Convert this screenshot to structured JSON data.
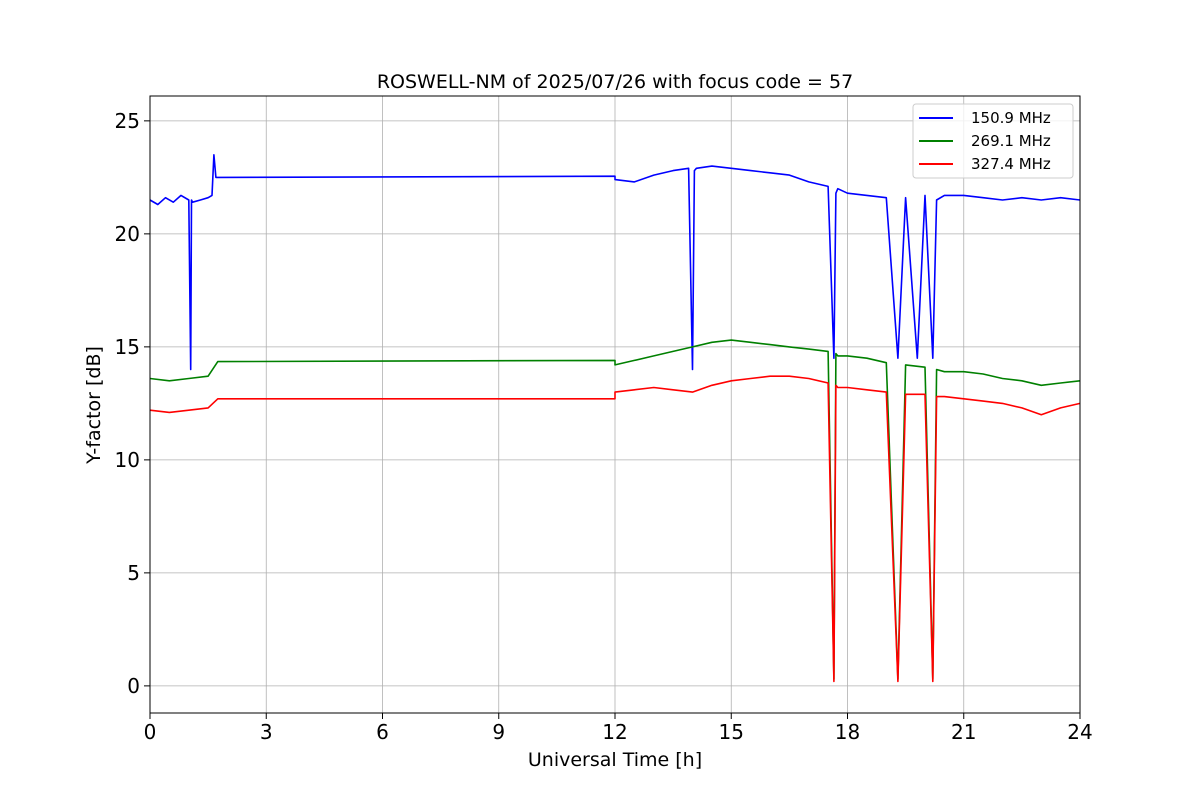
{
  "chart_data": {
    "type": "line",
    "title": "ROSWELL-NM of 2025/07/26 with focus code = 57",
    "xlabel": "Universal Time [h]",
    "ylabel": "Y-factor [dB]",
    "xlim": [
      0,
      24
    ],
    "ylim": [
      -1.2,
      26.1
    ],
    "xticks": [
      0,
      3,
      6,
      9,
      12,
      15,
      18,
      21,
      24
    ],
    "yticks": [
      0,
      5,
      10,
      15,
      20,
      25
    ],
    "grid": true,
    "legend_position": "top-right",
    "series": [
      {
        "name": "150.9 MHz",
        "color": "#0000ff",
        "x": [
          0.0,
          0.2,
          0.4,
          0.6,
          0.8,
          1.0,
          1.05,
          1.07,
          1.1,
          1.3,
          1.5,
          1.6,
          1.65,
          1.7,
          1.75,
          12.0,
          12.0,
          12.5,
          13.0,
          13.5,
          13.9,
          14.0,
          14.05,
          14.1,
          14.5,
          15.0,
          15.5,
          16.0,
          16.5,
          17.0,
          17.5,
          17.65,
          17.7,
          17.75,
          18.0,
          18.5,
          19.0,
          19.3,
          19.5,
          19.8,
          20.0,
          20.2,
          20.3,
          20.5,
          21.0,
          21.5,
          22.0,
          22.5,
          23.0,
          23.5,
          24.0
        ],
        "y": [
          21.5,
          21.3,
          21.6,
          21.4,
          21.7,
          21.5,
          14.0,
          21.5,
          21.4,
          21.5,
          21.6,
          21.7,
          23.5,
          22.5,
          22.5,
          22.55,
          22.4,
          22.3,
          22.6,
          22.8,
          22.9,
          14.0,
          22.8,
          22.9,
          23.0,
          22.9,
          22.8,
          22.7,
          22.6,
          22.3,
          22.1,
          14.5,
          21.8,
          22.0,
          21.8,
          21.7,
          21.6,
          14.5,
          21.6,
          14.5,
          21.7,
          14.5,
          21.5,
          21.7,
          21.7,
          21.6,
          21.5,
          21.6,
          21.5,
          21.6,
          21.5
        ]
      },
      {
        "name": "269.1 MHz",
        "color": "#008000",
        "x": [
          0.0,
          0.5,
          1.0,
          1.5,
          1.75,
          12.0,
          12.0,
          12.5,
          13.0,
          13.5,
          14.0,
          14.5,
          15.0,
          15.5,
          16.0,
          16.5,
          17.0,
          17.5,
          17.65,
          17.7,
          17.75,
          18.0,
          18.5,
          19.0,
          19.3,
          19.5,
          20.0,
          20.2,
          20.3,
          20.5,
          21.0,
          21.5,
          22.0,
          22.5,
          23.0,
          23.5,
          24.0
        ],
        "y": [
          13.6,
          13.5,
          13.6,
          13.7,
          14.35,
          14.4,
          14.2,
          14.4,
          14.6,
          14.8,
          15.0,
          15.2,
          15.3,
          15.2,
          15.1,
          15.0,
          14.9,
          14.8,
          0.3,
          14.7,
          14.6,
          14.6,
          14.5,
          14.3,
          0.3,
          14.2,
          14.1,
          0.3,
          14.0,
          13.9,
          13.9,
          13.8,
          13.6,
          13.5,
          13.3,
          13.4,
          13.5
        ]
      },
      {
        "name": "327.4 MHz",
        "color": "#ff0000",
        "x": [
          0.0,
          0.5,
          1.0,
          1.5,
          1.75,
          12.0,
          12.0,
          12.5,
          13.0,
          13.5,
          14.0,
          14.5,
          15.0,
          15.5,
          16.0,
          16.5,
          17.0,
          17.5,
          17.65,
          17.7,
          17.75,
          18.0,
          18.5,
          19.0,
          19.3,
          19.5,
          20.0,
          20.2,
          20.3,
          20.5,
          21.0,
          21.5,
          22.0,
          22.5,
          23.0,
          23.5,
          24.0
        ],
        "y": [
          12.2,
          12.1,
          12.2,
          12.3,
          12.7,
          12.7,
          13.0,
          13.1,
          13.2,
          13.1,
          13.0,
          13.3,
          13.5,
          13.6,
          13.7,
          13.7,
          13.6,
          13.4,
          0.2,
          13.3,
          13.2,
          13.2,
          13.1,
          13.0,
          0.2,
          12.9,
          12.9,
          0.2,
          12.8,
          12.8,
          12.7,
          12.6,
          12.5,
          12.3,
          12.0,
          12.3,
          12.5
        ]
      }
    ]
  }
}
